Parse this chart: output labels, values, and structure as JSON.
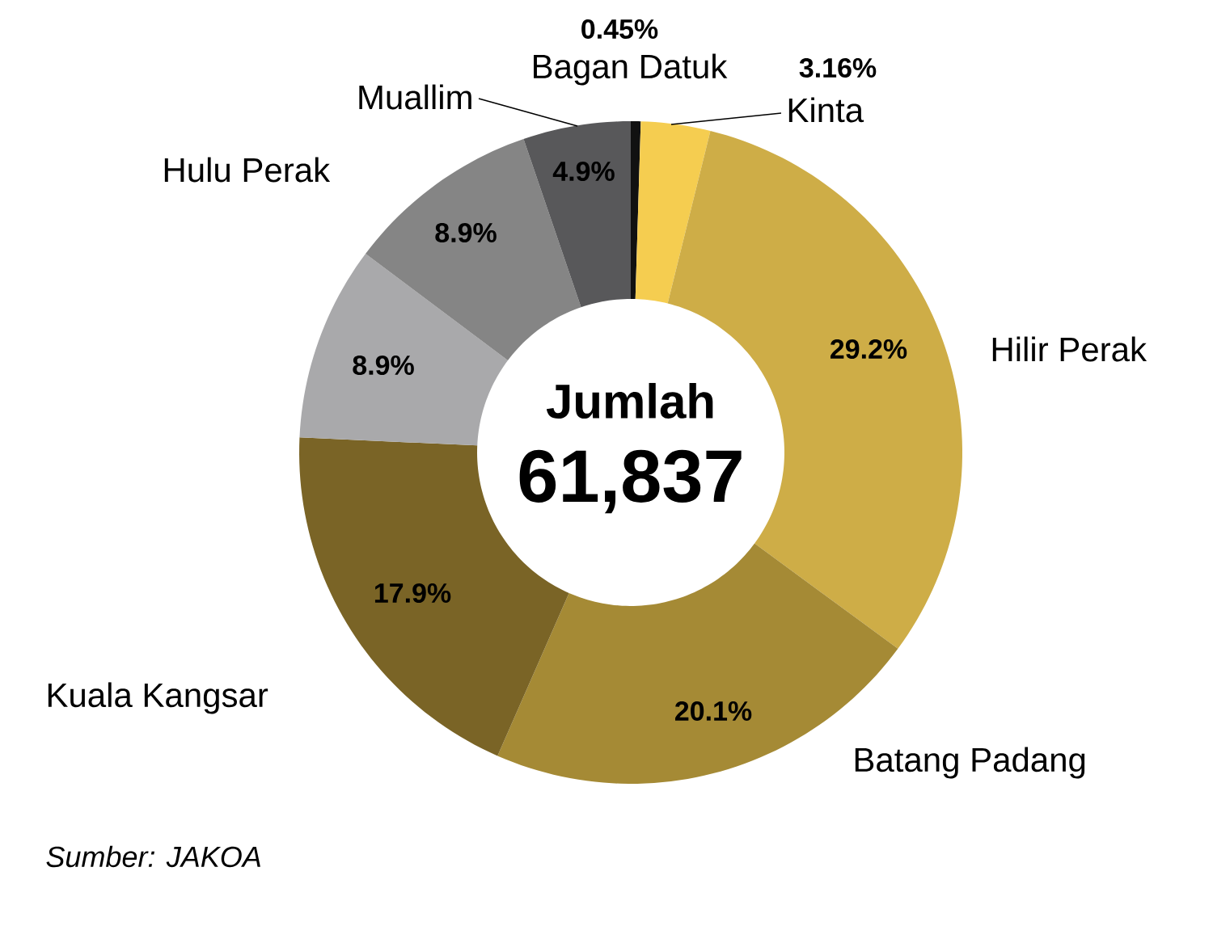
{
  "chart_data": {
    "type": "donut",
    "categories": [
      "Bagan Datuk",
      "Kinta",
      "Hilir Perak",
      "Batang Padang",
      "Kuala Kangsar",
      null,
      "Hulu Perak",
      "Muallim"
    ],
    "values": [
      0.45,
      3.16,
      29.2,
      20.1,
      17.9,
      8.9,
      8.9,
      4.9
    ],
    "value_labels": [
      "0.45%",
      "3.16%",
      "29.2%",
      "20.1%",
      "17.9%",
      "8.9%",
      "8.9%",
      "4.9%"
    ],
    "colors": [
      "#111111",
      "#f5cd50",
      "#cead47",
      "#a58a35",
      "#7a6426",
      "#a9a9ab",
      "#858585",
      "#58585a"
    ],
    "annotations": [
      "Jumlah",
      "61,837",
      "Sumber: JAKOA"
    ]
  }
}
